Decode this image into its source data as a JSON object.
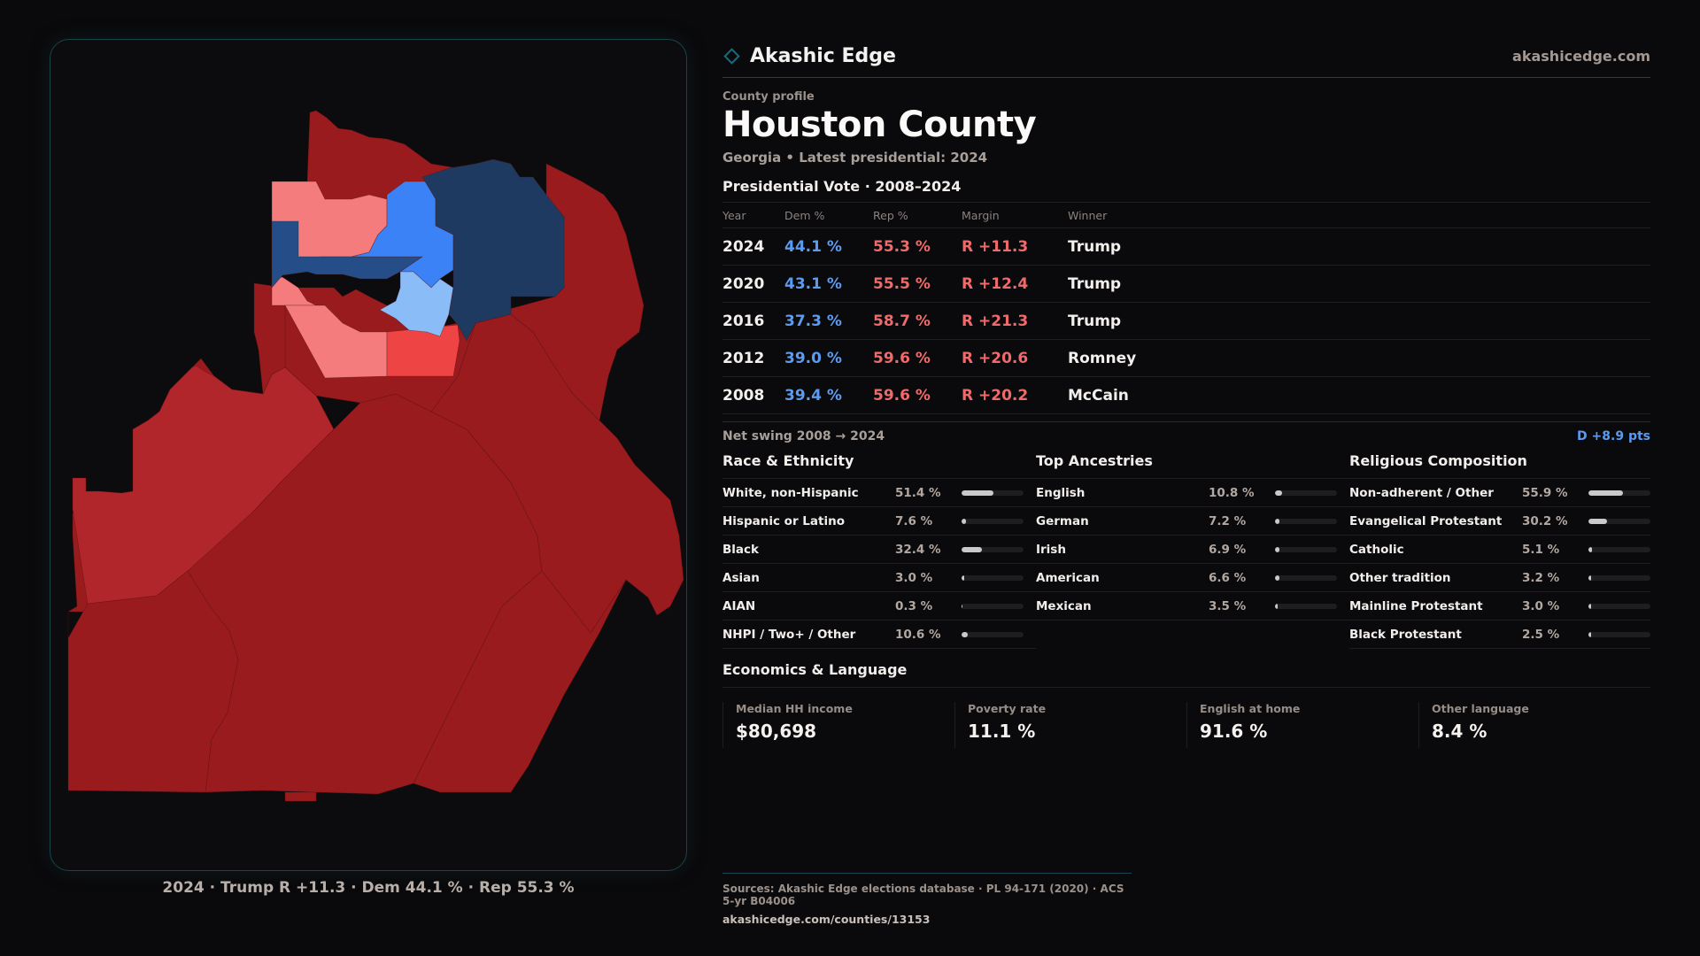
{
  "brand": {
    "name": "Akashic Edge",
    "site": "akashicedge.com",
    "icon": "diamond-outline-icon"
  },
  "profile": {
    "eyebrow": "County profile",
    "title": "Houston County",
    "subtitle": "Georgia • Latest presidential: 2024"
  },
  "votes": {
    "heading": "Presidential Vote · 2008–2024",
    "columns": [
      "Year",
      "Dem %",
      "Rep %",
      "Margin",
      "Winner"
    ],
    "rows": [
      {
        "year": "2024",
        "dem": "44.1 %",
        "rep": "55.3 %",
        "margin": "R +11.3",
        "winner": "Trump"
      },
      {
        "year": "2020",
        "dem": "43.1 %",
        "rep": "55.5 %",
        "margin": "R +12.4",
        "winner": "Trump"
      },
      {
        "year": "2016",
        "dem": "37.3 %",
        "rep": "58.7 %",
        "margin": "R +21.3",
        "winner": "Trump"
      },
      {
        "year": "2012",
        "dem": "39.0 %",
        "rep": "59.6 %",
        "margin": "R +20.6",
        "winner": "Romney"
      },
      {
        "year": "2008",
        "dem": "39.4 %",
        "rep": "59.6 %",
        "margin": "R +20.2",
        "winner": "McCain"
      }
    ],
    "swing_label": "Net swing 2008 → 2024",
    "swing_value": "D +8.9 pts"
  },
  "race": {
    "title": "Race & Ethnicity",
    "items": [
      {
        "label": "White, non-Hispanic",
        "pct": "51.4 %",
        "value": 51.4
      },
      {
        "label": "Hispanic or Latino",
        "pct": "7.6 %",
        "value": 7.6
      },
      {
        "label": "Black",
        "pct": "32.4 %",
        "value": 32.4
      },
      {
        "label": "Asian",
        "pct": "3.0 %",
        "value": 3.0
      },
      {
        "label": "AIAN",
        "pct": "0.3 %",
        "value": 0.3
      },
      {
        "label": "NHPI / Two+ / Other",
        "pct": "10.6 %",
        "value": 10.6
      }
    ]
  },
  "ancestry": {
    "title": "Top Ancestries",
    "items": [
      {
        "label": "English",
        "pct": "10.8 %",
        "value": 10.8
      },
      {
        "label": "German",
        "pct": "7.2 %",
        "value": 7.2
      },
      {
        "label": "Irish",
        "pct": "6.9 %",
        "value": 6.9
      },
      {
        "label": "American",
        "pct": "6.6 %",
        "value": 6.6
      },
      {
        "label": "Mexican",
        "pct": "3.5 %",
        "value": 3.5
      }
    ]
  },
  "religion": {
    "title": "Religious Composition",
    "items": [
      {
        "label": "Non-adherent / Other",
        "pct": "55.9 %",
        "value": 55.9
      },
      {
        "label": "Evangelical Protestant",
        "pct": "30.2 %",
        "value": 30.2
      },
      {
        "label": "Catholic",
        "pct": "5.1 %",
        "value": 5.1
      },
      {
        "label": "Other tradition",
        "pct": "3.2 %",
        "value": 3.2
      },
      {
        "label": "Mainline Protestant",
        "pct": "3.0 %",
        "value": 3.0
      },
      {
        "label": "Black Protestant",
        "pct": "2.5 %",
        "value": 2.5
      }
    ]
  },
  "economics": {
    "title": "Economics & Language",
    "cells": [
      {
        "label": "Median HH income",
        "value": "$80,698"
      },
      {
        "label": "Poverty rate",
        "value": "11.1 %"
      },
      {
        "label": "English at home",
        "value": "91.6 %"
      },
      {
        "label": "Other language",
        "value": "8.4 %"
      }
    ]
  },
  "map": {
    "caption": "2024 · Trump R +11.3 · Dem 44.1 % · Rep 55.3 %",
    "colors": {
      "safe_r": "#9a1b1e",
      "likely_r": "#b1262b",
      "lean_r": "#ef4444",
      "tilt_r": "#f47c7c",
      "tilt_d": "#8abcf8",
      "lean_d": "#3b82f6",
      "likely_d": "#254e88",
      "safe_d": "#1e3a60"
    }
  },
  "footer": {
    "sources": "Sources: Akashic Edge elections database · PL 94-171 (2020) · ACS 5-yr B04006",
    "url": "akashicedge.com/counties/13153"
  }
}
